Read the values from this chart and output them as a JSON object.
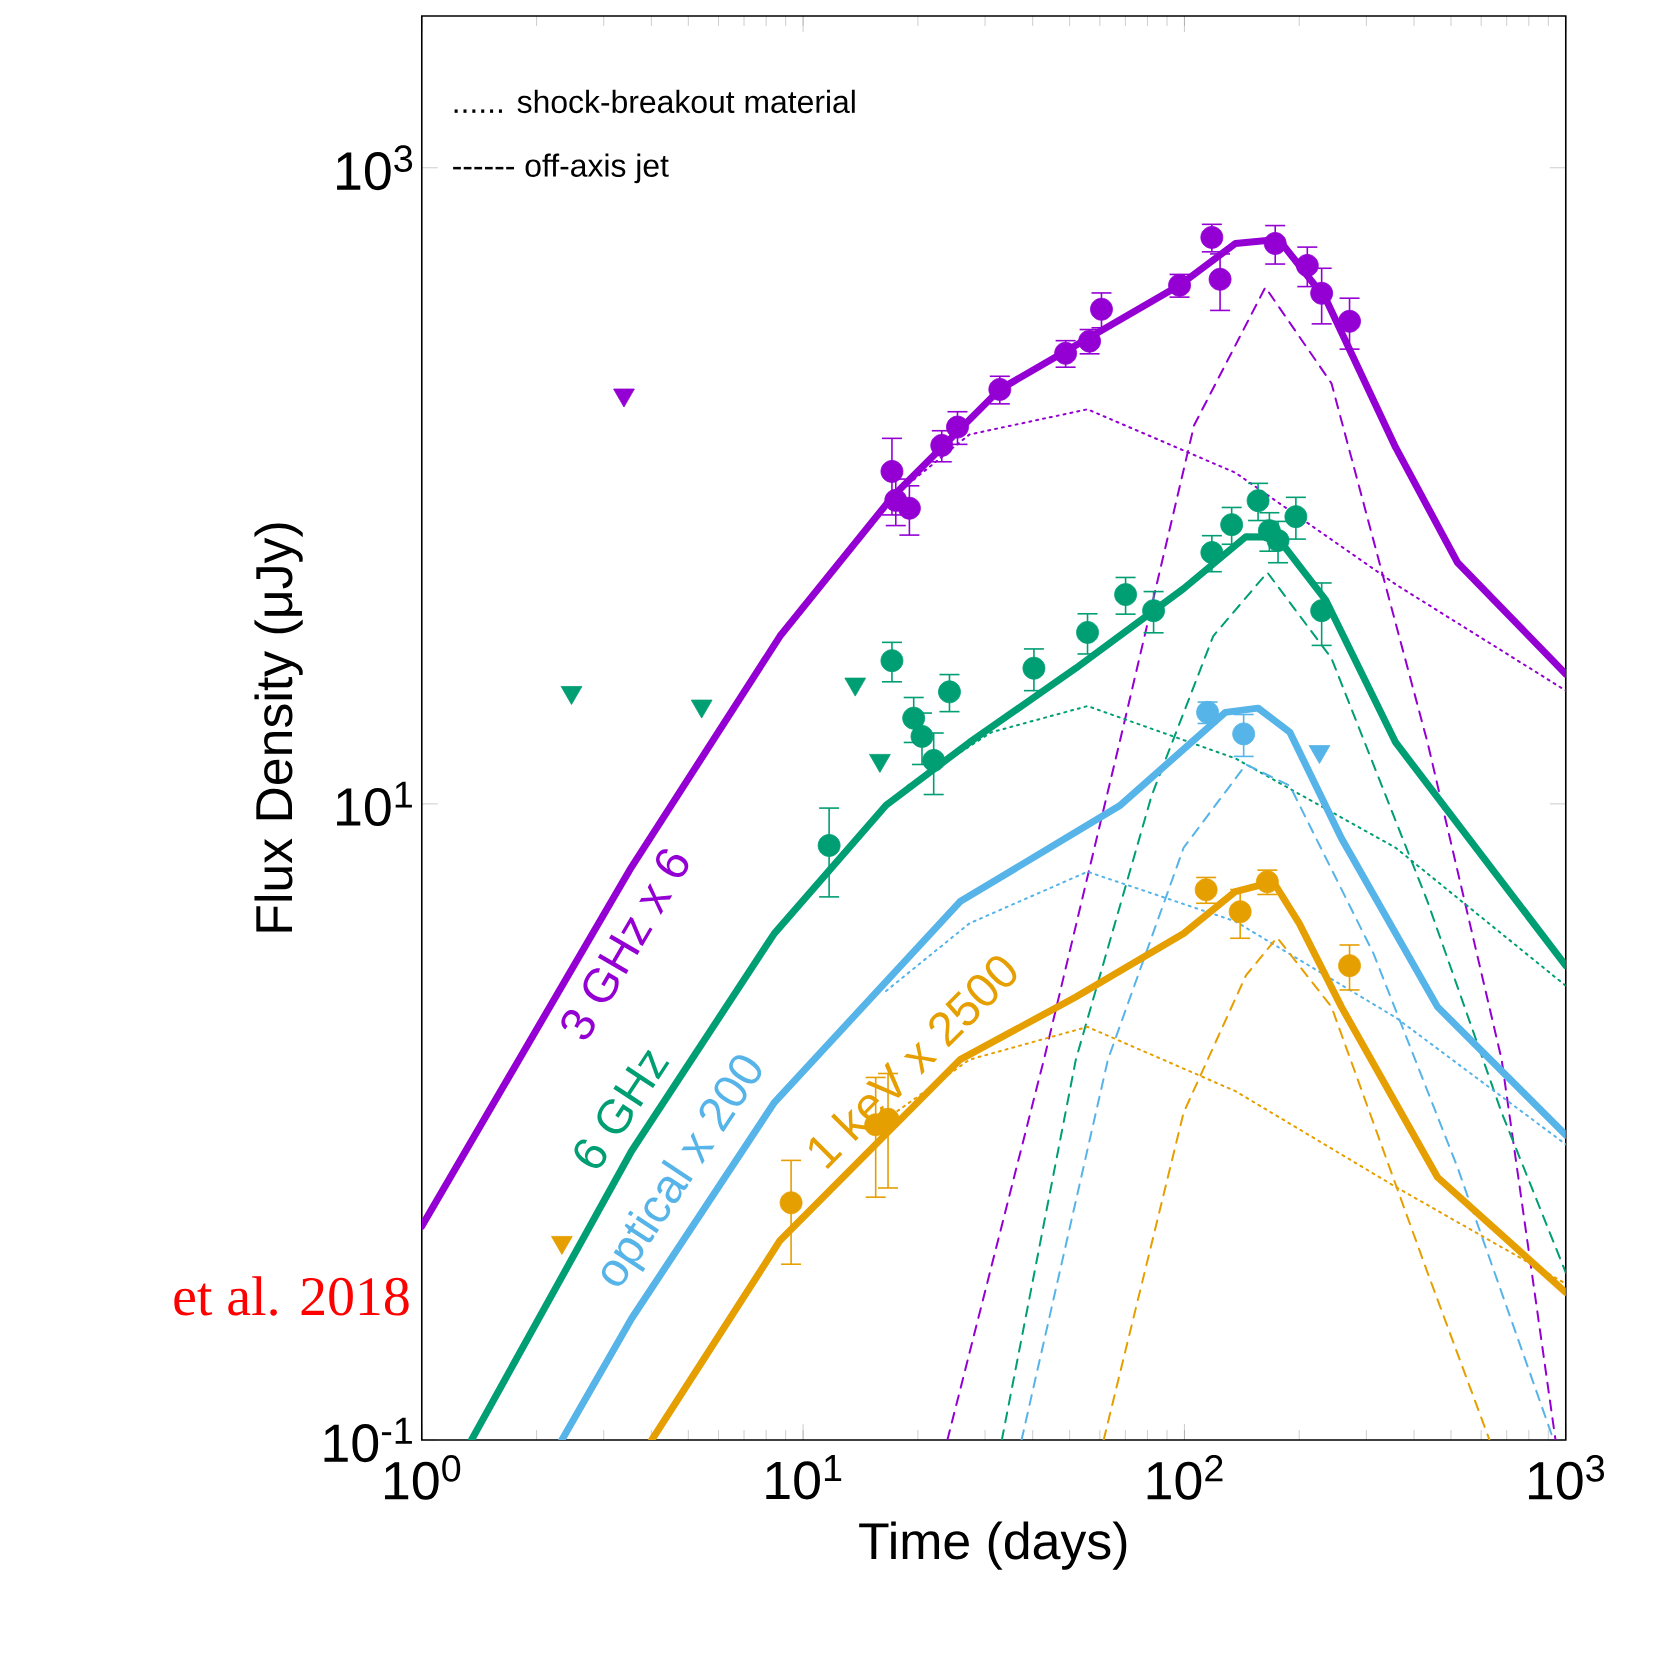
{
  "chart_data": {
    "type": "line",
    "xlabel": "Time (days)",
    "ylabel": "Flux Density (μJy)",
    "log": "xy",
    "xlim": [
      1,
      1000
    ],
    "ylim": [
      0.1,
      3000
    ],
    "xticks": [
      {
        "value": 1,
        "label": "10$^{0}$"
      },
      {
        "value": 10,
        "label": "10$^{1}$"
      },
      {
        "value": 100,
        "label": "10$^{2}$"
      },
      {
        "value": 1000,
        "label": "10$^{3}$"
      }
    ],
    "yticks": [
      {
        "value": 0.1,
        "label": "10$^{-1}$"
      },
      {
        "value": 10,
        "label": "10$^{1}$"
      },
      {
        "value": 1000,
        "label": "10$^{3}$"
      }
    ],
    "annotations": [
      "...... shock-breakout material",
      "------ off-axis jet",
      "et al. 2018"
    ],
    "series": [
      {
        "line_style": "dotted",
        "color": "#9400d3",
        "x": [
          17.1,
          27.3,
          55.7,
          136,
          358,
          1000
        ],
        "values": [
          92,
          145,
          174,
          110,
          49,
          22.7
        ]
      },
      {
        "line_style": "dashed",
        "color": "#9400d3",
        "x": [
          23.9,
          42.8,
          67.6,
          106,
          163,
          243,
          434,
          679,
          940
        ],
        "values": [
          0.1,
          1.57,
          15.6,
          155,
          421,
          210,
          15.6,
          1.57,
          0.1
        ]
      },
      {
        "line_style": "dotted",
        "color": "#009e73",
        "x": [
          18.8,
          31.2,
          55.7,
          136,
          358,
          1000
        ],
        "values": [
          11.4,
          16.8,
          20.3,
          13.9,
          7.28,
          2.68
        ]
      },
      {
        "line_style": "dashed",
        "color": "#009e73",
        "x": [
          33.2,
          51.9,
          82,
          119,
          165,
          243,
          434,
          679,
          1000
        ],
        "values": [
          0.1,
          1.57,
          10.6,
          33.7,
          53.4,
          28.7,
          4.93,
          1.07,
          0.336
        ]
      },
      {
        "line_style": "dotted",
        "color": "#56b4e9",
        "x": [
          16.5,
          27.3,
          55.7,
          136,
          358,
          1000
        ],
        "values": [
          2.58,
          4.21,
          6.12,
          4.27,
          2.13,
          0.85
        ]
      },
      {
        "line_style": "dashed",
        "color": "#56b4e9",
        "x": [
          37.4,
          63,
          99.5,
          145,
          189,
          313,
          520,
          929
        ],
        "values": [
          0.1,
          1.57,
          7.28,
          13.3,
          11.4,
          3.39,
          0.72,
          0.1
        ]
      },
      {
        "line_style": "dotted",
        "color": "#e69f00",
        "x": [
          16.5,
          27.3,
          55.7,
          136,
          358,
          1000
        ],
        "values": [
          1.02,
          1.57,
          1.99,
          1.25,
          0.625,
          0.31
        ]
      },
      {
        "line_style": "dashed",
        "color": "#e69f00",
        "x": [
          61.4,
          99.5,
          145,
          175,
          243,
          434,
          631
        ],
        "values": [
          0.1,
          1.07,
          2.89,
          3.8,
          2.3,
          0.336,
          0.1
        ]
      },
      {
        "line_style": "solid",
        "name": "3 GHz x 6",
        "color": "#9400d3",
        "x": [
          1,
          3.51,
          8.7,
          17.1,
          32.8,
          97.1,
          136,
          173,
          182,
          235,
          358,
          520,
          1000
        ],
        "values": [
          0.47,
          6.2,
          33.7,
          92,
          201,
          427,
          578,
          594,
          569,
          386,
          132,
          57.4,
          25.6
        ]
      },
      {
        "line_style": "solid",
        "name": "6 GHz",
        "color": "#009e73",
        "x": [
          1.35,
          3.55,
          8.4,
          16.5,
          27.3,
          51.9,
          99.5,
          145,
          175,
          235,
          358,
          1000
        ],
        "values": [
          0.1,
          0.81,
          3.91,
          9.9,
          15.6,
          26.7,
          47.5,
          69.2,
          69,
          43.6,
          15.6,
          3.1
        ]
      },
      {
        "line_style": "solid",
        "name": "optical x 200",
        "color": "#56b4e9",
        "x": [
          2.33,
          3.55,
          8.4,
          25.8,
          67.6,
          128,
          156,
          189,
          258,
          461,
          1000
        ],
        "values": [
          0.1,
          0.241,
          1.15,
          4.93,
          9.86,
          19.4,
          20.0,
          16.8,
          7.8,
          2.3,
          0.91
        ]
      },
      {
        "line_style": "solid",
        "name": "1 keV x 2500",
        "color": "#e69f00",
        "x": [
          4.01,
          8.7,
          25.8,
          51.9,
          99.5,
          136,
          171,
          200,
          258,
          461,
          1000
        ],
        "values": [
          0.1,
          0.424,
          1.57,
          2.47,
          3.91,
          5.3,
          5.69,
          4.21,
          2.3,
          0.67,
          0.291
        ]
      },
      {
        "type": "scatter",
        "marker": "circle",
        "color": "#9400d3",
        "x": [
          17.1,
          17.5,
          19.0,
          23.1,
          25.4,
          32.8,
          48.8,
          56.4,
          60.6,
          97.1,
          118,
          124,
          173,
          229,
          271
        ],
        "values": [
          111,
          90,
          85,
          134,
          153,
          201,
          261,
          285,
          359,
          427,
          604,
          446,
          578,
          403,
          329
        ],
        "errors": [
          30,
          15,
          15,
          15,
          18,
          20,
          25,
          25,
          45,
          35,
          60,
          90,
          80,
          80,
          60
        ]
      },
      {
        "type": "scatter",
        "marker": "circle",
        "color": "#9400d3",
        "x": [
          210
        ],
        "values": [
          493
        ],
        "errors": [
          70
        ]
      },
      {
        "type": "scatter",
        "marker": "triangle",
        "color": "#9400d3",
        "x": [
          3.39
        ],
        "values": [
          193
        ]
      },
      {
        "type": "scatter",
        "marker": "circle",
        "color": "#009e73",
        "x": [
          11.7,
          17.1,
          19.5,
          20.5,
          22.0,
          24.2,
          40.3,
          55.7,
          70.1,
          83.0,
          118,
          167,
          176,
          229
        ],
        "values": [
          7.4,
          28.2,
          18.6,
          16.3,
          13.7,
          22.5,
          26.7,
          34.6,
          45.5,
          40.5,
          61.7,
          72.3,
          67.3,
          40.5
        ],
        "errors": [
          2.3,
          4,
          3,
          3,
          3,
          3,
          4,
          5,
          6,
          6,
          8,
          10,
          10,
          9
        ]
      },
      {
        "type": "scatter",
        "marker": "circle",
        "color": "#009e73",
        "x": [
          133,
          156,
          196
        ],
        "values": [
          75.5,
          89.8,
          80.0
        ],
        "errors": [
          10,
          12,
          12
        ]
      },
      {
        "type": "scatter",
        "marker": "triangle",
        "color": "#009e73",
        "x": [
          2.47,
          5.42,
          13.7,
          15.9
        ],
        "values": [
          22.4,
          20.3,
          23.8,
          13.7
        ]
      },
      {
        "type": "scatter",
        "marker": "circle",
        "color": "#56b4e9",
        "x": [
          115,
          143
        ],
        "values": [
          19.4,
          16.6
        ],
        "errors": [
          1.5,
          2.5
        ]
      },
      {
        "type": "scatter",
        "marker": "triangle",
        "color": "#56b4e9",
        "x": [
          226
        ],
        "values": [
          14.6
        ]
      },
      {
        "type": "scatter",
        "marker": "circle",
        "color": "#e69f00",
        "x": [
          9.3,
          15.5,
          16.7,
          114,
          140,
          165,
          271
        ],
        "values": [
          0.557,
          0.98,
          1.02,
          5.37,
          4.58,
          5.69,
          3.1
        ],
        "errors": [
          0.2,
          0.4,
          0.4,
          0.5,
          0.8,
          0.5,
          0.5
        ]
      },
      {
        "type": "scatter",
        "marker": "triangle",
        "color": "#e69f00",
        "x": [
          2.33
        ],
        "values": [
          0.418
        ]
      }
    ]
  }
}
